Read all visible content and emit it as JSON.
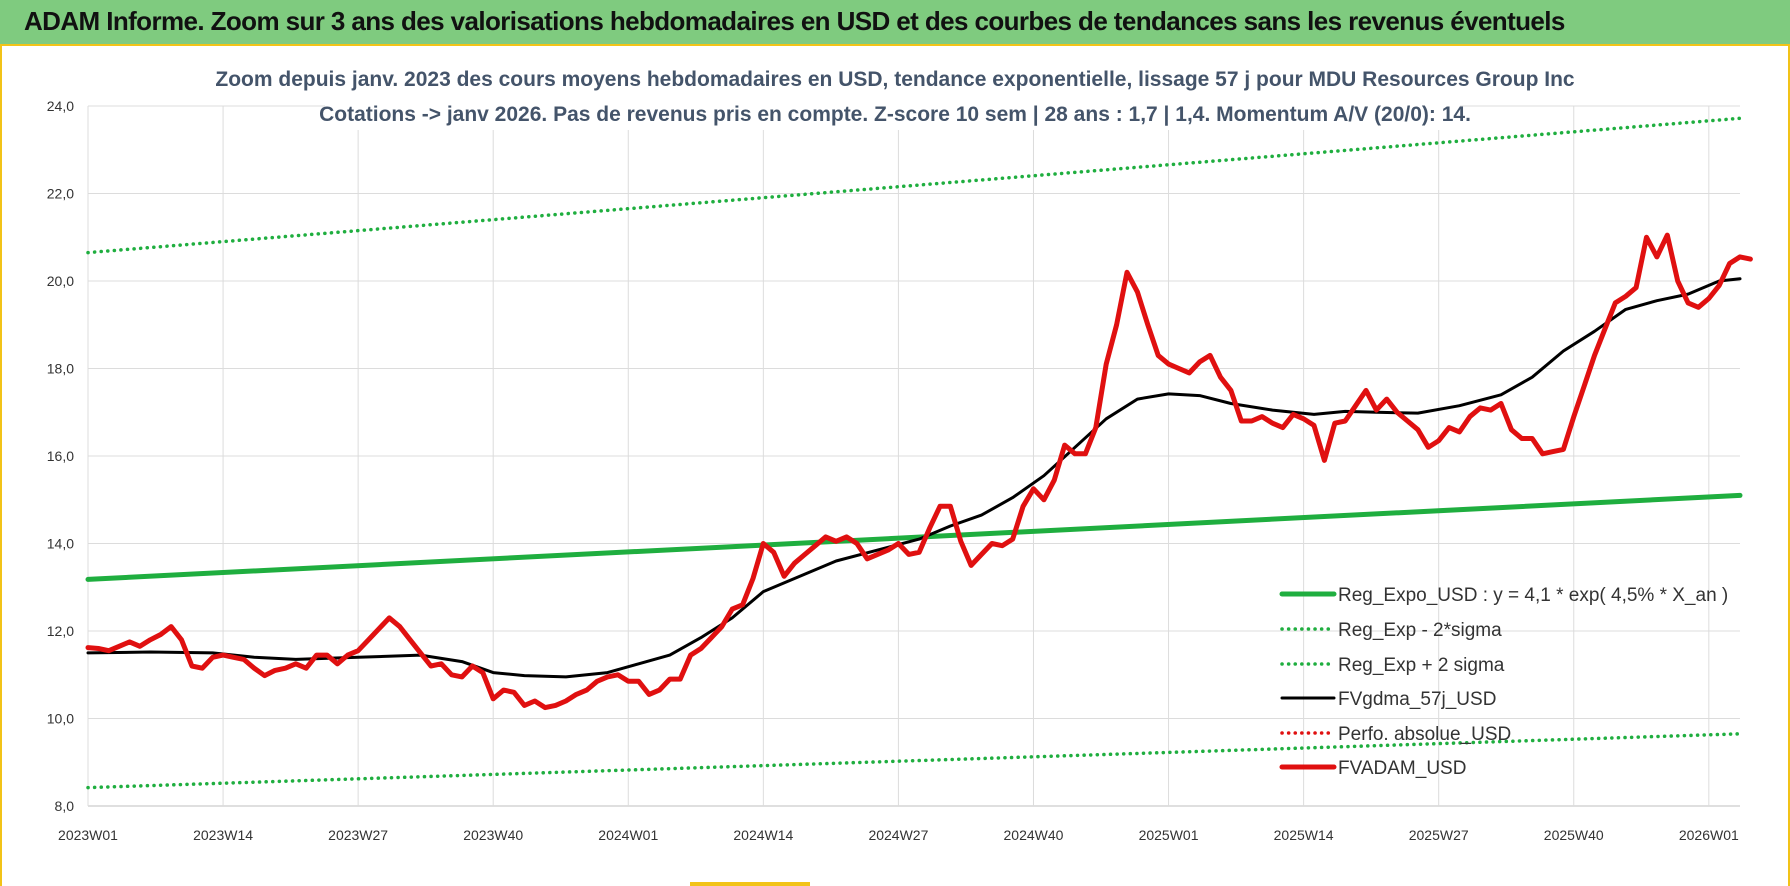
{
  "header": {
    "banner": "ADAM Informe. Zoom sur 3 ans des valorisations hebdomadaires en USD et des courbes de tendances sans les revenus éventuels",
    "banner_color": "#7fcb7f",
    "frame_color": "#f2c318"
  },
  "chart_data": {
    "type": "line",
    "title_lines": [
      "Zoom depuis janv. 2023 des cours moyens hebdomadaires en USD, tendance exponentielle, lissage 57 j pour MDU Resources Group Inc",
      "Cotations -> janv 2026. Pas de revenus pris en compte. Z-score 10 sem  | 28 ans : 1,7 | 1,4. Momentum A/V (20/0): 14."
    ],
    "ylim": [
      8,
      24
    ],
    "yticks": [
      "8,0",
      "10,0",
      "12,0",
      "14,0",
      "16,0",
      "18,0",
      "20,0",
      "22,0",
      "24,0"
    ],
    "xticks": [
      "2023W01",
      "2023W14",
      "2023W27",
      "2023W40",
      "2024W01",
      "2024W14",
      "2024W27",
      "2024W40",
      "2025W01",
      "2025W14",
      "2025W27",
      "2025W40",
      "2026W01"
    ],
    "x_range_weeks": [
      0,
      159
    ],
    "grid": true,
    "legend_position": "bottom-right",
    "series": [
      {
        "name": "Reg_Expo_USD : y = 4,1 * exp( 4,5% * X_an )",
        "color": "#1fae3f",
        "style": "solid-thick",
        "points": [
          [
            0,
            13.18
          ],
          [
            159,
            15.1
          ]
        ]
      },
      {
        "name": "Reg_Exp - 2*sigma",
        "color": "#1fae3f",
        "style": "dotted",
        "points": [
          [
            0,
            8.42
          ],
          [
            159,
            9.65
          ]
        ]
      },
      {
        "name": "Reg_Exp + 2 sigma",
        "color": "#1fae3f",
        "style": "dotted",
        "points": [
          [
            0,
            20.65
          ],
          [
            159,
            23.72
          ]
        ]
      },
      {
        "name": "FVgdma_57j_USD",
        "color": "#000000",
        "style": "solid",
        "points": [
          [
            0,
            11.5
          ],
          [
            6,
            11.52
          ],
          [
            12,
            11.5
          ],
          [
            16,
            11.4
          ],
          [
            20,
            11.35
          ],
          [
            26,
            11.4
          ],
          [
            32,
            11.45
          ],
          [
            36,
            11.3
          ],
          [
            39,
            11.05
          ],
          [
            42,
            10.98
          ],
          [
            46,
            10.95
          ],
          [
            50,
            11.05
          ],
          [
            53,
            11.25
          ],
          [
            56,
            11.45
          ],
          [
            59,
            11.85
          ],
          [
            62,
            12.3
          ],
          [
            65,
            12.9
          ],
          [
            69,
            13.3
          ],
          [
            72,
            13.6
          ],
          [
            76,
            13.85
          ],
          [
            80,
            14.1
          ],
          [
            83,
            14.4
          ],
          [
            86,
            14.65
          ],
          [
            89,
            15.05
          ],
          [
            92,
            15.55
          ],
          [
            95,
            16.2
          ],
          [
            98,
            16.85
          ],
          [
            101,
            17.3
          ],
          [
            104,
            17.42
          ],
          [
            107,
            17.38
          ],
          [
            110,
            17.2
          ],
          [
            114,
            17.05
          ],
          [
            118,
            16.95
          ],
          [
            121,
            17.02
          ],
          [
            124,
            17.0
          ],
          [
            128,
            16.98
          ],
          [
            132,
            17.15
          ],
          [
            136,
            17.4
          ],
          [
            139,
            17.8
          ],
          [
            142,
            18.4
          ],
          [
            145,
            18.85
          ],
          [
            148,
            19.35
          ],
          [
            151,
            19.55
          ],
          [
            154,
            19.7
          ],
          [
            157,
            20.0
          ],
          [
            159,
            20.05
          ]
        ]
      },
      {
        "name": "Perfo. absolue_USD",
        "color": "#e01010",
        "style": "dotted",
        "points": []
      },
      {
        "name": "FVADAM_USD",
        "color": "#e01010",
        "style": "solid-thick",
        "points": [
          [
            0,
            11.62
          ],
          [
            1,
            11.6
          ],
          [
            2,
            11.55
          ],
          [
            3,
            11.65
          ],
          [
            4,
            11.75
          ],
          [
            5,
            11.65
          ],
          [
            6,
            11.8
          ],
          [
            7,
            11.92
          ],
          [
            8,
            12.1
          ],
          [
            9,
            11.8
          ],
          [
            10,
            11.2
          ],
          [
            11,
            11.15
          ],
          [
            12,
            11.4
          ],
          [
            13,
            11.45
          ],
          [
            14,
            11.4
          ],
          [
            15,
            11.35
          ],
          [
            16,
            11.15
          ],
          [
            17,
            10.98
          ],
          [
            18,
            11.1
          ],
          [
            19,
            11.15
          ],
          [
            20,
            11.25
          ],
          [
            21,
            11.15
          ],
          [
            22,
            11.45
          ],
          [
            23,
            11.45
          ],
          [
            24,
            11.25
          ],
          [
            25,
            11.45
          ],
          [
            26,
            11.55
          ],
          [
            27,
            11.8
          ],
          [
            28,
            12.05
          ],
          [
            29,
            12.3
          ],
          [
            30,
            12.1
          ],
          [
            31,
            11.8
          ],
          [
            32,
            11.5
          ],
          [
            33,
            11.2
          ],
          [
            34,
            11.25
          ],
          [
            35,
            11.0
          ],
          [
            36,
            10.95
          ],
          [
            37,
            11.2
          ],
          [
            38,
            11.05
          ],
          [
            39,
            10.45
          ],
          [
            40,
            10.65
          ],
          [
            41,
            10.6
          ],
          [
            42,
            10.3
          ],
          [
            43,
            10.4
          ],
          [
            44,
            10.25
          ],
          [
            45,
            10.3
          ],
          [
            46,
            10.4
          ],
          [
            47,
            10.55
          ],
          [
            48,
            10.65
          ],
          [
            49,
            10.85
          ],
          [
            50,
            10.95
          ],
          [
            51,
            11.0
          ],
          [
            52,
            10.85
          ],
          [
            53,
            10.85
          ],
          [
            54,
            10.55
          ],
          [
            55,
            10.65
          ],
          [
            56,
            10.9
          ],
          [
            57,
            10.9
          ],
          [
            58,
            11.45
          ],
          [
            59,
            11.6
          ],
          [
            60,
            11.85
          ],
          [
            61,
            12.1
          ],
          [
            62,
            12.5
          ],
          [
            63,
            12.6
          ],
          [
            64,
            13.2
          ],
          [
            65,
            14.0
          ],
          [
            66,
            13.8
          ],
          [
            67,
            13.25
          ],
          [
            68,
            13.55
          ],
          [
            69,
            13.75
          ],
          [
            70,
            13.95
          ],
          [
            71,
            14.15
          ],
          [
            72,
            14.05
          ],
          [
            73,
            14.15
          ],
          [
            74,
            14.0
          ],
          [
            75,
            13.65
          ],
          [
            76,
            13.75
          ],
          [
            77,
            13.85
          ],
          [
            78,
            14.0
          ],
          [
            79,
            13.75
          ],
          [
            80,
            13.8
          ],
          [
            81,
            14.35
          ],
          [
            82,
            14.85
          ],
          [
            83,
            14.85
          ],
          [
            84,
            14.05
          ],
          [
            85,
            13.5
          ],
          [
            86,
            13.75
          ],
          [
            87,
            14.0
          ],
          [
            88,
            13.95
          ],
          [
            89,
            14.1
          ],
          [
            90,
            14.85
          ],
          [
            91,
            15.25
          ],
          [
            92,
            15.0
          ],
          [
            93,
            15.45
          ],
          [
            94,
            16.25
          ],
          [
            95,
            16.05
          ],
          [
            96,
            16.05
          ],
          [
            97,
            16.65
          ],
          [
            98,
            18.1
          ],
          [
            99,
            19.0
          ],
          [
            100,
            20.2
          ],
          [
            101,
            19.75
          ],
          [
            102,
            19.0
          ],
          [
            103,
            18.3
          ],
          [
            104,
            18.1
          ],
          [
            105,
            18.0
          ],
          [
            106,
            17.9
          ],
          [
            107,
            18.15
          ],
          [
            108,
            18.3
          ],
          [
            109,
            17.8
          ],
          [
            110,
            17.5
          ],
          [
            111,
            16.8
          ],
          [
            112,
            16.8
          ],
          [
            113,
            16.9
          ],
          [
            114,
            16.75
          ],
          [
            115,
            16.65
          ],
          [
            116,
            16.95
          ],
          [
            117,
            16.85
          ],
          [
            118,
            16.7
          ],
          [
            119,
            15.9
          ],
          [
            120,
            16.75
          ],
          [
            121,
            16.8
          ],
          [
            122,
            17.15
          ],
          [
            123,
            17.5
          ],
          [
            124,
            17.05
          ],
          [
            125,
            17.3
          ],
          [
            126,
            17.0
          ],
          [
            127,
            16.8
          ],
          [
            128,
            16.6
          ],
          [
            129,
            16.2
          ],
          [
            130,
            16.35
          ],
          [
            131,
            16.65
          ],
          [
            132,
            16.55
          ],
          [
            133,
            16.9
          ],
          [
            134,
            17.1
          ],
          [
            135,
            17.05
          ],
          [
            136,
            17.2
          ],
          [
            137,
            16.6
          ],
          [
            138,
            16.4
          ],
          [
            139,
            16.4
          ],
          [
            140,
            16.05
          ],
          [
            141,
            16.1
          ],
          [
            142,
            16.15
          ],
          [
            143,
            16.9
          ],
          [
            144,
            17.6
          ],
          [
            145,
            18.3
          ],
          [
            146,
            18.9
          ],
          [
            147,
            19.5
          ],
          [
            148,
            19.65
          ],
          [
            149,
            19.85
          ],
          [
            150,
            21.0
          ],
          [
            151,
            20.55
          ],
          [
            152,
            21.05
          ],
          [
            153,
            20.0
          ],
          [
            154,
            19.5
          ],
          [
            155,
            19.4
          ],
          [
            156,
            19.6
          ],
          [
            157,
            19.9
          ],
          [
            158,
            20.4
          ],
          [
            159,
            20.55
          ],
          [
            160,
            20.5
          ]
        ]
      }
    ]
  }
}
